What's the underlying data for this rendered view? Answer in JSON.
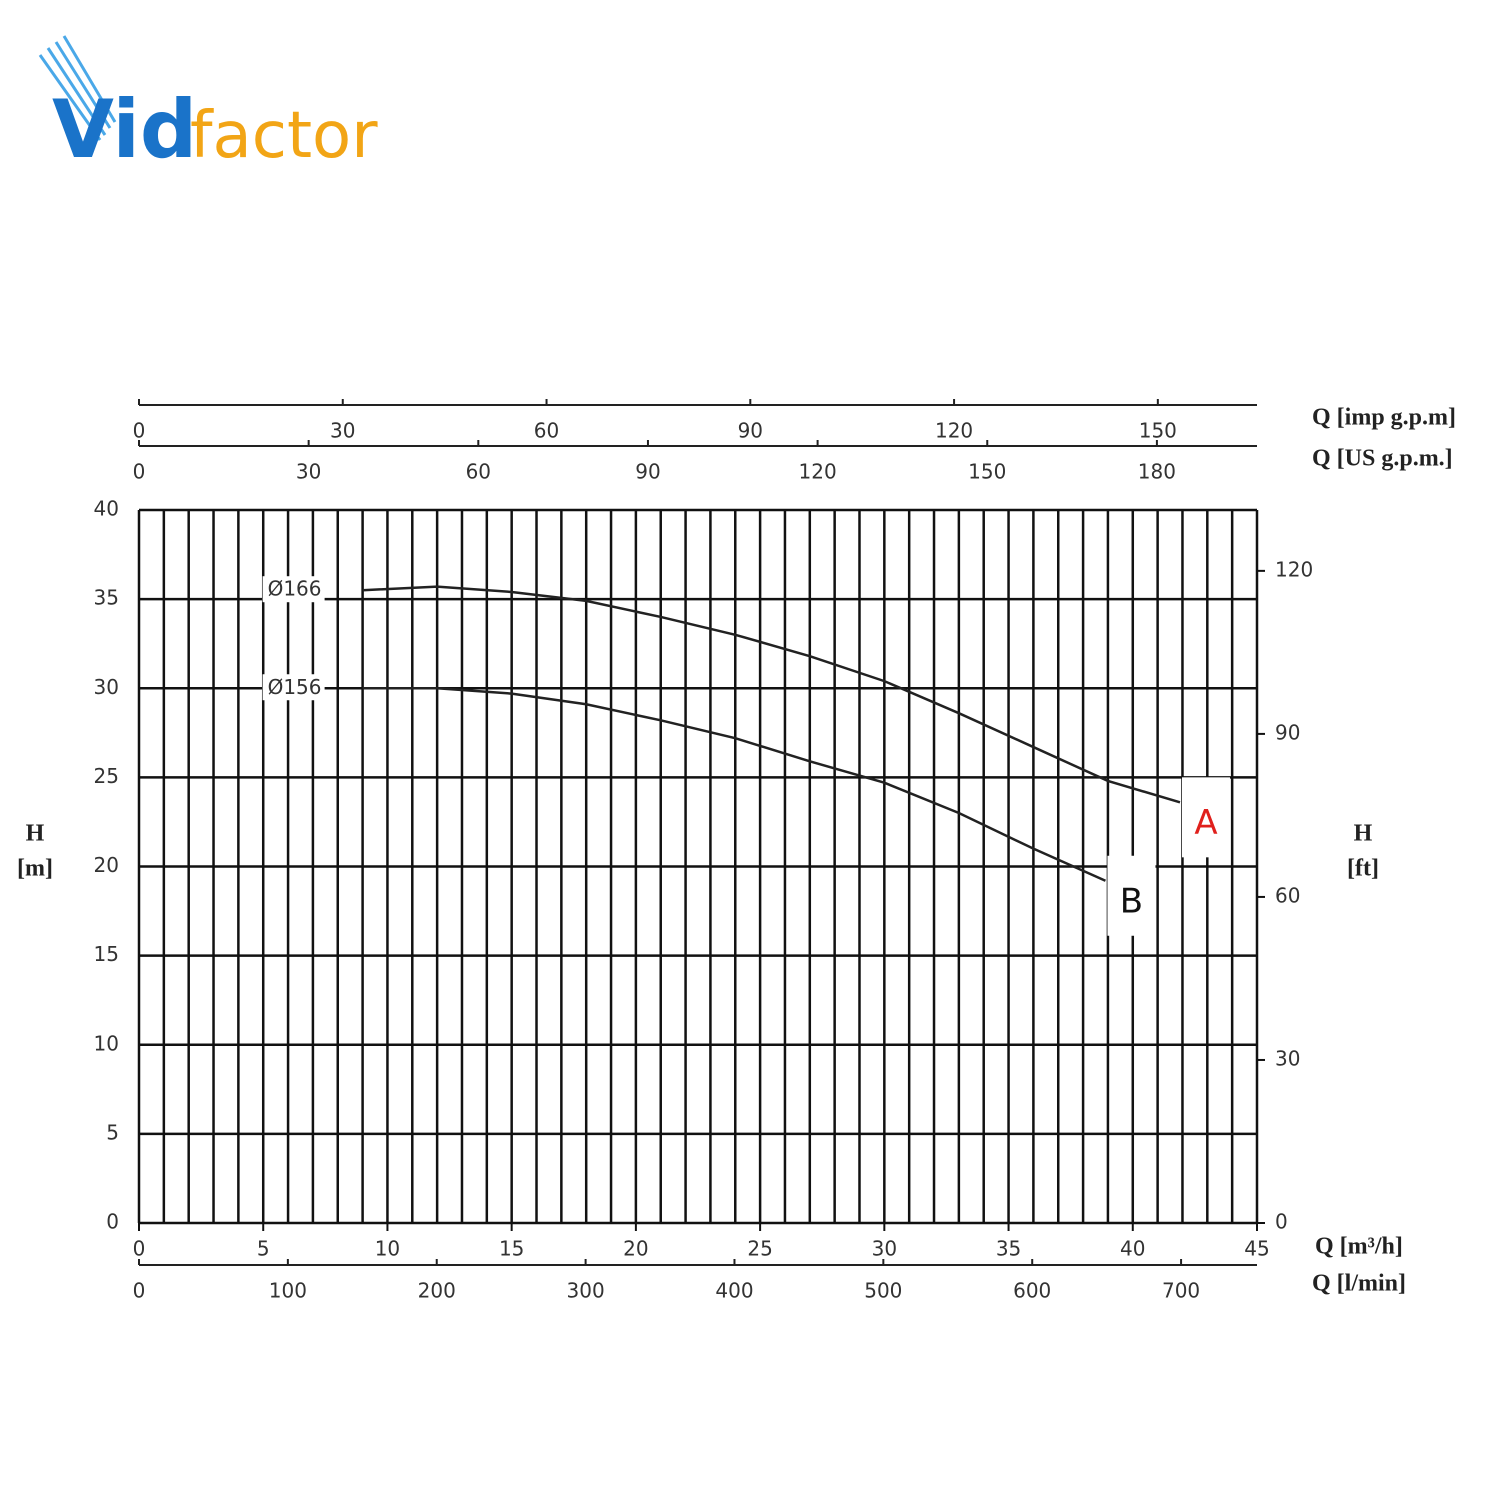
{
  "logo": {
    "blue": "Vid",
    "orange": "factor"
  },
  "chart_data": {
    "type": "line",
    "x_label": "Q [m³/h]",
    "y_label": [
      "H",
      "[m]"
    ],
    "y2_label": [
      "H",
      "[ft]"
    ],
    "xlim": [
      0,
      45
    ],
    "xticks": [
      0,
      5,
      10,
      15,
      20,
      25,
      30,
      35,
      40,
      45
    ],
    "xgrid_step": 1,
    "ylim": [
      0,
      40
    ],
    "yticks": [
      0,
      5,
      10,
      15,
      20,
      25,
      30,
      35,
      40
    ],
    "y2lim": [
      0,
      131.2
    ],
    "y2ticks": [
      0,
      30,
      60,
      90,
      120
    ],
    "grid": true,
    "extra_x_axes": [
      {
        "label": "Q [imp g.p.m]",
        "position": "top",
        "xlim": [
          0,
          164.6
        ],
        "xticks": [
          0,
          30,
          60,
          90,
          120,
          150
        ]
      },
      {
        "label": "Q [US g.p.m.]",
        "position": "top",
        "xlim": [
          0,
          197.7
        ],
        "xticks": [
          0,
          30,
          60,
          90,
          120,
          150,
          180
        ]
      },
      {
        "label": "Q [l/min]",
        "position": "bottom",
        "xlim": [
          0,
          751
        ],
        "xticks": [
          0,
          100,
          200,
          300,
          400,
          500,
          600,
          700
        ]
      }
    ],
    "series": [
      {
        "name": "Ø166",
        "tag": "A",
        "tag_color": "#e0201c",
        "color": "#222222",
        "x": [
          9,
          12,
          15,
          18,
          21,
          24,
          27,
          30,
          33,
          36,
          39,
          41.9
        ],
        "values": [
          35.5,
          35.7,
          35.4,
          34.9,
          34.0,
          33.0,
          31.8,
          30.4,
          28.6,
          26.7,
          24.8,
          23.6
        ]
      },
      {
        "name": "Ø156",
        "tag": "B",
        "tag_color": "#111111",
        "color": "#222222",
        "x": [
          9,
          12,
          15,
          18,
          21,
          24,
          27,
          30,
          33,
          36,
          38.9
        ],
        "values": [
          30.0,
          30.0,
          29.7,
          29.1,
          28.2,
          27.2,
          25.9,
          24.7,
          23.0,
          21.0,
          19.2
        ]
      }
    ]
  }
}
